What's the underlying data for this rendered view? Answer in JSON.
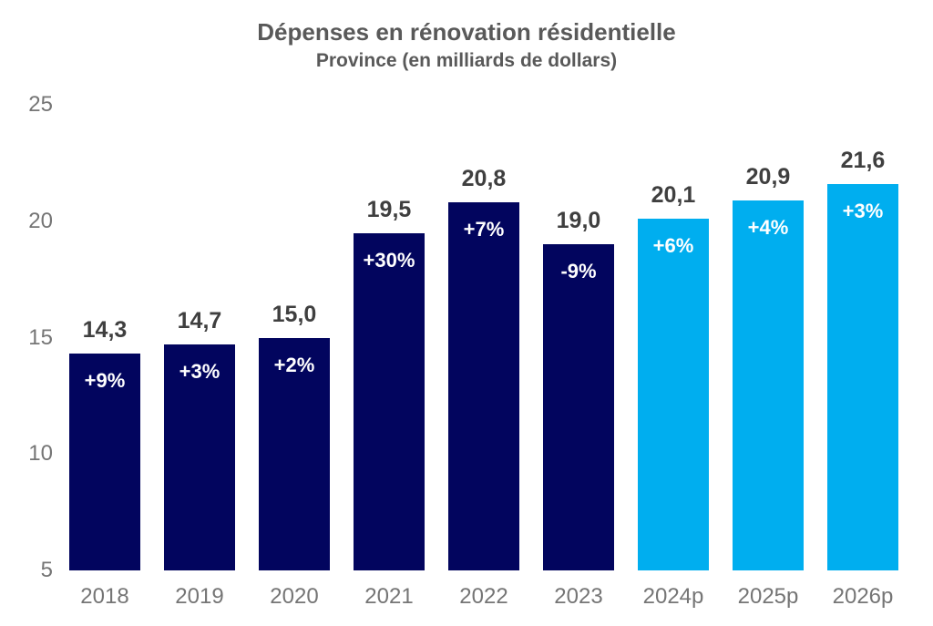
{
  "chart_data": {
    "type": "bar",
    "title": "Dépenses en rénovation résidentielle",
    "subtitle": "Province (en milliards de dollars)",
    "categories": [
      "2018",
      "2019",
      "2020",
      "2021",
      "2022",
      "2023",
      "2024p",
      "2025p",
      "2026p"
    ],
    "values": [
      14.3,
      14.7,
      15.0,
      19.5,
      20.8,
      19.0,
      20.1,
      20.9,
      21.6
    ],
    "value_labels": [
      "14,3",
      "14,7",
      "15,0",
      "19,5",
      "20,8",
      "19,0",
      "20,1",
      "20,9",
      "21,6"
    ],
    "pct_labels": [
      "+9%",
      "+3%",
      "+2%",
      "+30%",
      "+7%",
      "-9%",
      "+6%",
      "+4%",
      "+3%"
    ],
    "forecast": [
      false,
      false,
      false,
      false,
      false,
      false,
      true,
      true,
      true
    ],
    "ylim": [
      5,
      25
    ],
    "yticks": [
      25,
      20,
      15,
      10,
      5
    ],
    "grid": false,
    "legend": false,
    "colors": {
      "actual_bar": "#02055E",
      "forecast_bar": "#00AEEF",
      "pct_text": "#FFFFFF",
      "value_text": "#3F3F3F",
      "axis_text": "#757575",
      "title_text": "#595959"
    }
  }
}
